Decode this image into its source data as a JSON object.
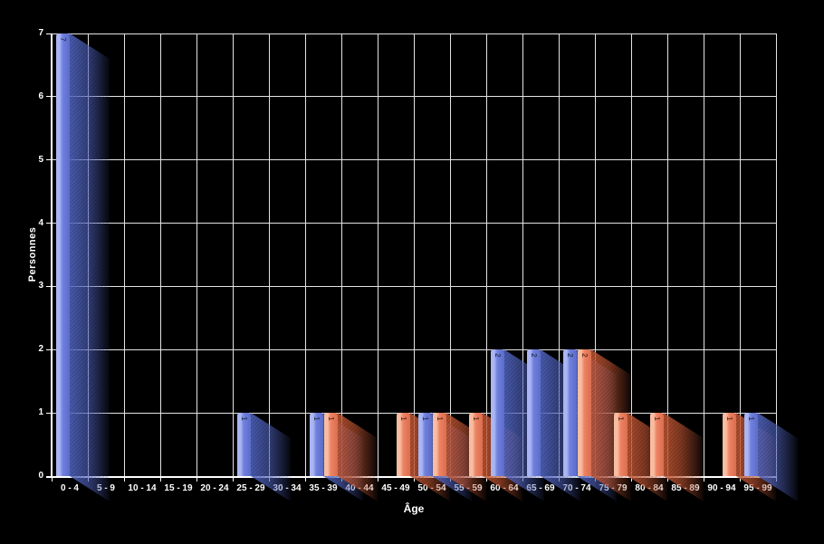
{
  "chart_data": {
    "type": "bar",
    "title": "",
    "xlabel": "Âge",
    "ylabel": "Personnes",
    "categories": [
      "0 - 4",
      "5 - 9",
      "10 - 14",
      "15 - 19",
      "20 - 24",
      "25 - 29",
      "30 - 34",
      "35 - 39",
      "40 - 44",
      "45 - 49",
      "50 - 54",
      "55 - 59",
      "60 - 64",
      "65 - 69",
      "70 - 74",
      "75 - 79",
      "80 - 84",
      "85 - 89",
      "90 - 94",
      "95 - 99"
    ],
    "series": [
      {
        "name": "blue",
        "color": "#7080dd",
        "highlight": "#aab5f3",
        "edge": "#5c6cc9",
        "shadow_rgb": "82,102,196",
        "label_color": "#2c3a63",
        "values": [
          7,
          0,
          0,
          0,
          0,
          1,
          0,
          1,
          0,
          0,
          1,
          0,
          2,
          2,
          2,
          0,
          0,
          0,
          0,
          1
        ]
      },
      {
        "name": "orange",
        "color": "#ee8365",
        "highlight": "#f8bda1",
        "edge": "#d96e4e",
        "shadow_rgb": "198,88,52",
        "label_color": "#6e3420",
        "values": [
          0,
          0,
          0,
          0,
          0,
          0,
          0,
          1,
          0,
          1,
          1,
          1,
          0,
          0,
          2,
          1,
          1,
          0,
          1,
          0
        ]
      }
    ],
    "ylim": [
      0,
      7
    ],
    "yticks": [
      0,
      1,
      2,
      3,
      4,
      5,
      6,
      7
    ],
    "grid": true,
    "bar_value_labels": true,
    "legend": "none",
    "background_color": "#000000",
    "grid_color": "#e3e3e3",
    "axis_color": "#ffffff",
    "text_color": "#ffffff"
  }
}
